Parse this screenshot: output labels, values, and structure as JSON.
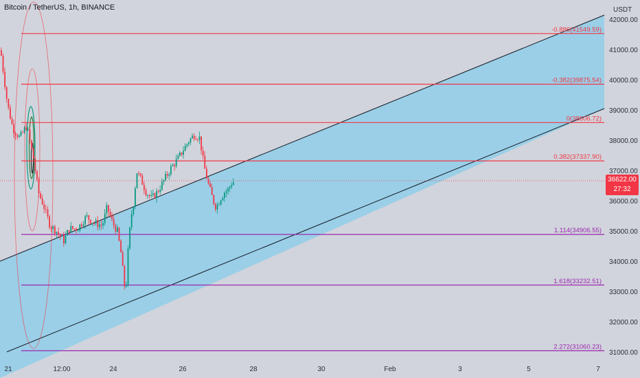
{
  "header": {
    "title": "Bitcoin / TetherUS, 1h, BINANCE",
    "currency": "USDT"
  },
  "price_axis": {
    "ticks": [
      "42000.00",
      "41000.00",
      "40000.00",
      "39000.00",
      "38000.00",
      "37000.00",
      "36000.00",
      "35000.00",
      "34000.00",
      "33000.00",
      "32000.00",
      "31000.00"
    ]
  },
  "time_axis": {
    "ticks": [
      "21",
      "12:00",
      "24",
      "26",
      "28",
      "30",
      "Feb",
      "3",
      "5",
      "7"
    ]
  },
  "current_price": {
    "price": "36622.00",
    "countdown": "27:32"
  },
  "fib_levels": [
    {
      "label": "-0.886(41549.59)",
      "value": 41549.59,
      "color": "#f23645"
    },
    {
      "label": "-0.382(39875.54)",
      "value": 39875.54,
      "color": "#f23645"
    },
    {
      "label": "0(38606.72)",
      "value": 38606.72,
      "color": "#f23645"
    },
    {
      "label": "0.382(37337.90)",
      "value": 37337.9,
      "color": "#f23645"
    },
    {
      "label": "1.114(34906.55)",
      "value": 34906.55,
      "color": "#9c27b0"
    },
    {
      "label": "1.618(33232.51)",
      "value": 33232.51,
      "color": "#9c27b0"
    },
    {
      "label": "2.272(31060.23)",
      "value": 31060.23,
      "color": "#9c27b0"
    }
  ],
  "colors": {
    "background": "#d1d4dc",
    "channel_fill": "#87ceeb",
    "up": "#089981",
    "down": "#f23645"
  }
}
